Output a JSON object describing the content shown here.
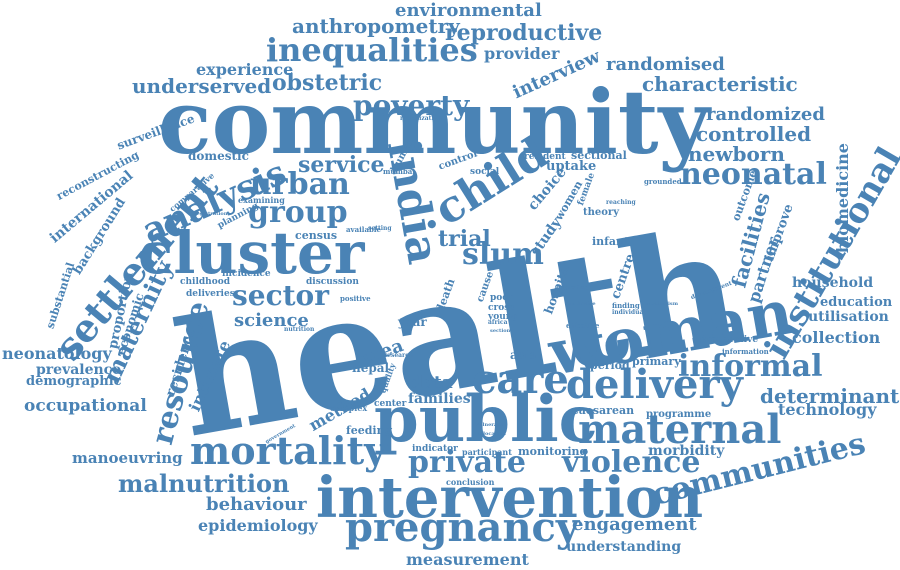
{
  "colors": {
    "word": "#4a83b5",
    "background": "#ffffff"
  },
  "words": [
    "health",
    "community",
    "woman",
    "public",
    "intervention",
    "cluster",
    "child",
    "india",
    "care",
    "delivery",
    "pregnancy",
    "maternal",
    "mortality",
    "private",
    "violence",
    "communities",
    "settlement",
    "analysis",
    "institutional",
    "informal",
    "neonatal",
    "inequalities",
    "poverty",
    "group",
    "urban",
    "slum",
    "sector",
    "resource",
    "malnutrition",
    "maternity",
    "trial",
    "service",
    "newborn",
    "environmental",
    "reproductive",
    "anthropometry",
    "obstetric",
    "underserved",
    "experience",
    "interview",
    "provider",
    "randomised",
    "characteristic",
    "randomized",
    "controlled",
    "facilities",
    "partner",
    "biomedicine",
    "household",
    "education",
    "utilisation",
    "collection",
    "determinant",
    "technology",
    "neonatology",
    "prevalence",
    "demographic",
    "occupational",
    "intimate",
    "residence",
    "science",
    "method",
    "data",
    "families",
    "manoeuvring",
    "behaviour",
    "epidemiology",
    "measurement",
    "engagement",
    "understanding",
    "morbidity",
    "monitoring",
    "feeding",
    "area",
    "nepal",
    "asia",
    "period",
    "primary",
    "caesarean",
    "programme",
    "uptake",
    "choice",
    "study",
    "sectional",
    "surveillance",
    "reconstructing",
    "international",
    "background",
    "domestic",
    "substantial",
    "proportion",
    "economic",
    "census",
    "childhood",
    "incidence",
    "deliveries",
    "discussion",
    "human",
    "control",
    "social",
    "resident",
    "female",
    "infant",
    "theory",
    "outcome",
    "improve",
    "prospective",
    "information",
    "centre",
    "hospital",
    "women",
    "year",
    "complex",
    "center",
    "indicator",
    "participant",
    "conclusion",
    "young",
    "poor",
    "cross",
    "death",
    "cause",
    "available",
    "setting",
    "planning",
    "examining",
    "comparative",
    "registration",
    "mumbai",
    "mobilization",
    "grounded",
    "reaching",
    "examine",
    "positive",
    "nutrition",
    "research",
    "quality",
    "effective",
    "development",
    "vulnerable",
    "allocation",
    "government",
    "section",
    "africa",
    "finding",
    "mechanism",
    "emphasise",
    "individual"
  ]
}
